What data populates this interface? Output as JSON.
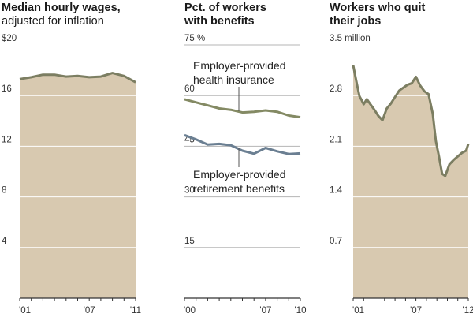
{
  "colors": {
    "area_fill": "#d8c9b0",
    "line": "#7c7e62",
    "health_line": "#848a64",
    "retirement_line": "#6b7f92",
    "grid": "#ffffff",
    "grid_on_white": "#b5b5b5",
    "axis": "#333333"
  },
  "chart_data": [
    {
      "type": "area",
      "title": "Median hourly wages,",
      "subtitle": "adjusted for inflation",
      "y_ticks": [
        "$20",
        "16",
        "12",
        "8",
        "4"
      ],
      "y_tick_values": [
        20,
        16,
        12,
        8,
        4
      ],
      "ylim": [
        0,
        20
      ],
      "x_tick_labels": [
        "'01",
        "'07",
        "'11"
      ],
      "x_tick_values": [
        2001,
        2007,
        2011
      ],
      "xlim": [
        2001,
        2011
      ],
      "x": [
        2001,
        2002,
        2003,
        2004,
        2005,
        2006,
        2007,
        2008,
        2009,
        2010,
        2011
      ],
      "values": [
        17.3,
        17.45,
        17.65,
        17.65,
        17.5,
        17.55,
        17.45,
        17.5,
        17.78,
        17.55,
        17.05
      ]
    },
    {
      "type": "line",
      "title": "Pct. of workers",
      "subtitle": "with benefits",
      "y_ticks": [
        "75 %",
        "60",
        "45",
        "30",
        "15"
      ],
      "y_tick_values": [
        75,
        60,
        45,
        30,
        15
      ],
      "ylim": [
        0,
        75
      ],
      "x_tick_labels": [
        "'00",
        "'07",
        "'10"
      ],
      "x_tick_values": [
        2000,
        2007,
        2010
      ],
      "xlim": [
        2000,
        2010
      ],
      "x": [
        2000,
        2001,
        2002,
        2003,
        2004,
        2005,
        2006,
        2007,
        2008,
        2009,
        2010
      ],
      "series": [
        {
          "annotation": [
            "Employer-provided",
            "health insurance"
          ],
          "values": [
            58.9,
            58.0,
            57.1,
            56.2,
            55.8,
            55.0,
            55.2,
            55.6,
            55.2,
            54.1,
            53.6
          ]
        },
        {
          "annotation": [
            "Employer-provided",
            "retirement benefits"
          ],
          "values": [
            48.3,
            47.0,
            45.5,
            45.7,
            45.3,
            43.7,
            42.8,
            44.5,
            43.5,
            42.7,
            42.9
          ]
        }
      ]
    },
    {
      "type": "area",
      "title": "Workers who quit",
      "subtitle": "their jobs",
      "y_ticks": [
        "3.5 million",
        "2.8",
        "2.1",
        "1.4",
        "0.7"
      ],
      "y_tick_values": [
        3.5,
        2.8,
        2.1,
        1.4,
        0.7
      ],
      "ylim": [
        0,
        3.5
      ],
      "x_tick_labels": [
        "'01",
        "'07",
        "'12"
      ],
      "x_tick_values": [
        2001,
        2007,
        2012
      ],
      "xlim": [
        2001,
        2012
      ],
      "x": [
        2001.0,
        2001.2,
        2001.4,
        2001.6,
        2001.8,
        2002.0,
        2002.3,
        2002.6,
        2003.0,
        2003.4,
        2003.8,
        2004.2,
        2004.6,
        2005.0,
        2005.4,
        2005.8,
        2006.2,
        2006.6,
        2007.0,
        2007.4,
        2007.8,
        2008.2,
        2008.6,
        2008.9,
        2009.2,
        2009.5,
        2009.8,
        2010.2,
        2010.6,
        2011.0,
        2011.4,
        2011.8,
        2012.0
      ],
      "values": [
        3.22,
        3.07,
        2.93,
        2.79,
        2.74,
        2.68,
        2.75,
        2.69,
        2.61,
        2.52,
        2.46,
        2.62,
        2.69,
        2.78,
        2.87,
        2.91,
        2.95,
        2.97,
        3.06,
        2.94,
        2.86,
        2.82,
        2.55,
        2.17,
        1.96,
        1.72,
        1.69,
        1.85,
        1.91,
        1.96,
        2.01,
        2.04,
        2.13
      ]
    }
  ]
}
